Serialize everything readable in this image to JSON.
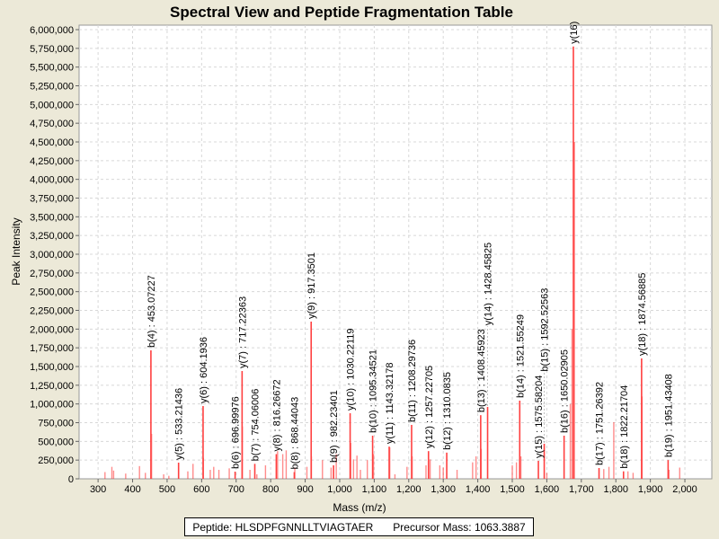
{
  "chart_data": {
    "type": "bar",
    "title": "Spectral View and Peptide Fragmentation Table",
    "xlabel": "Mass (m/z)",
    "ylabel": "Peak Intensity",
    "xlim": [
      245,
      2078
    ],
    "ylim": [
      0,
      6060000
    ],
    "x_ticks": [
      300,
      400,
      500,
      600,
      700,
      800,
      900,
      1000,
      1100,
      1200,
      1300,
      1400,
      1500,
      1600,
      1700,
      1800,
      1900,
      2000
    ],
    "x_tick_labels": [
      "300",
      "400",
      "500",
      "600",
      "700",
      "800",
      "900",
      "1,000",
      "1,100",
      "1,200",
      "1,300",
      "1,400",
      "1,500",
      "1,600",
      "1,700",
      "1,800",
      "1,900",
      "2,000"
    ],
    "y_ticks": [
      0,
      250000,
      500000,
      750000,
      1000000,
      1250000,
      1500000,
      1750000,
      2000000,
      2250000,
      2500000,
      2750000,
      3000000,
      3250000,
      3500000,
      3750000,
      4000000,
      4250000,
      4500000,
      4750000,
      5000000,
      5250000,
      5500000,
      5750000,
      6000000
    ],
    "y_tick_labels": [
      "0",
      "250,000",
      "500,000",
      "750,000",
      "1,000,000",
      "1,250,000",
      "1,500,000",
      "1,750,000",
      "2,000,000",
      "2,250,000",
      "2,500,000",
      "2,750,000",
      "3,000,000",
      "3,250,000",
      "3,500,000",
      "3,750,000",
      "4,000,000",
      "4,250,000",
      "4,500,000",
      "4,750,000",
      "5,000,000",
      "5,250,000",
      "5,500,000",
      "5,750,000",
      "6,000,000"
    ],
    "grid": true,
    "peak_color": "#FF4040",
    "annotated_peaks": [
      {
        "label": "b(4) : 453.07227",
        "mz": 453.07,
        "intensity": 1716000
      },
      {
        "label": "y(5) : 533.21436",
        "mz": 533.21,
        "intensity": 216000
      },
      {
        "label": "y(6) : 604.1936",
        "mz": 604.19,
        "intensity": 972000
      },
      {
        "label": "b(6) : 696.99976",
        "mz": 697.0,
        "intensity": 96000
      },
      {
        "label": "y(7) : 717.22363",
        "mz": 717.22,
        "intensity": 1440000
      },
      {
        "label": "b(7) : 754.06006",
        "mz": 754.06,
        "intensity": 200000
      },
      {
        "label": "y(8) : 816.26672",
        "mz": 816.27,
        "intensity": 330000
      },
      {
        "label": "b(8) : 868.44043",
        "mz": 868.44,
        "intensity": 90000
      },
      {
        "label": "y(9) : 917.3501",
        "mz": 917.35,
        "intensity": 2100000
      },
      {
        "label": "b(9) : 982.23401",
        "mz": 982.23,
        "intensity": 180000
      },
      {
        "label": "y(10) : 1030.22119",
        "mz": 1030.22,
        "intensity": 876000
      },
      {
        "label": "b(10) : 1095.34521",
        "mz": 1095.35,
        "intensity": 576000
      },
      {
        "label": "y(11) : 1143.32178",
        "mz": 1143.32,
        "intensity": 430000
      },
      {
        "label": "b(11) : 1208.29736",
        "mz": 1208.3,
        "intensity": 720000
      },
      {
        "label": "y(12) : 1257.22705",
        "mz": 1257.23,
        "intensity": 370000
      },
      {
        "label": "b(12) : 1310.0835",
        "mz": 1310.08,
        "intensity": 350000
      },
      {
        "label": "b(13) : 1408.45923",
        "mz": 1408.46,
        "intensity": 850000
      },
      {
        "label": "y(14) : 1428.45825",
        "mz": 1428.46,
        "intensity": 960000
      },
      {
        "label": "b(14) : 1521.55249",
        "mz": 1521.55,
        "intensity": 1044000
      },
      {
        "label": "y(15) : 1575.58204",
        "mz": 1575.58,
        "intensity": 240000
      },
      {
        "label": "b(15) : 1592.52563",
        "mz": 1592.53,
        "intensity": 468000
      },
      {
        "label": "b(16) : 1650.02905",
        "mz": 1650.03,
        "intensity": 576000
      },
      {
        "label": "y(16)",
        "mz": 1677,
        "intensity": 5775000
      },
      {
        "label": "b(17) : 1751.26392",
        "mz": 1751.26,
        "intensity": 144000
      },
      {
        "label": "b(18) : 1822.21704",
        "mz": 1822.22,
        "intensity": 100000
      },
      {
        "label": "y(18) : 1874.56885",
        "mz": 1874.57,
        "intensity": 1608000
      },
      {
        "label": "b(19) : 1951.43408",
        "mz": 1951.43,
        "intensity": 250000
      }
    ],
    "other_peaks": [
      [
        320,
        90000
      ],
      [
        340,
        160000
      ],
      [
        345,
        110000
      ],
      [
        380,
        70000
      ],
      [
        420,
        170000
      ],
      [
        437,
        80000
      ],
      [
        455,
        600000
      ],
      [
        490,
        60000
      ],
      [
        505,
        40000
      ],
      [
        560,
        100000
      ],
      [
        575,
        200000
      ],
      [
        605,
        280000
      ],
      [
        625,
        120000
      ],
      [
        635,
        160000
      ],
      [
        650,
        120000
      ],
      [
        680,
        140000
      ],
      [
        718,
        700000
      ],
      [
        740,
        120000
      ],
      [
        760,
        60000
      ],
      [
        785,
        180000
      ],
      [
        820,
        370000
      ],
      [
        835,
        330000
      ],
      [
        845,
        380000
      ],
      [
        870,
        150000
      ],
      [
        905,
        160000
      ],
      [
        918,
        300000
      ],
      [
        950,
        250000
      ],
      [
        975,
        150000
      ],
      [
        990,
        330000
      ],
      [
        1032,
        480000
      ],
      [
        1040,
        260000
      ],
      [
        1050,
        310000
      ],
      [
        1060,
        120000
      ],
      [
        1080,
        250000
      ],
      [
        1098,
        330000
      ],
      [
        1145,
        420000
      ],
      [
        1160,
        60000
      ],
      [
        1195,
        160000
      ],
      [
        1210,
        300000
      ],
      [
        1250,
        180000
      ],
      [
        1262,
        260000
      ],
      [
        1290,
        180000
      ],
      [
        1300,
        150000
      ],
      [
        1340,
        120000
      ],
      [
        1385,
        220000
      ],
      [
        1395,
        300000
      ],
      [
        1410,
        400000
      ],
      [
        1500,
        180000
      ],
      [
        1512,
        220000
      ],
      [
        1525,
        300000
      ],
      [
        1600,
        80000
      ],
      [
        1668,
        1000000
      ],
      [
        1673,
        2000000
      ],
      [
        1680,
        4500000
      ],
      [
        1765,
        130000
      ],
      [
        1780,
        160000
      ],
      [
        1794,
        756000
      ],
      [
        1835,
        100000
      ],
      [
        1850,
        80000
      ],
      [
        1876,
        1100000
      ],
      [
        1954,
        120000
      ],
      [
        1985,
        150000
      ]
    ]
  },
  "legend": {
    "peptide": "Peptide: HLSDPFGNNLLTVIAGTAER",
    "precursor": "Precursor Mass: 1063.3887"
  }
}
